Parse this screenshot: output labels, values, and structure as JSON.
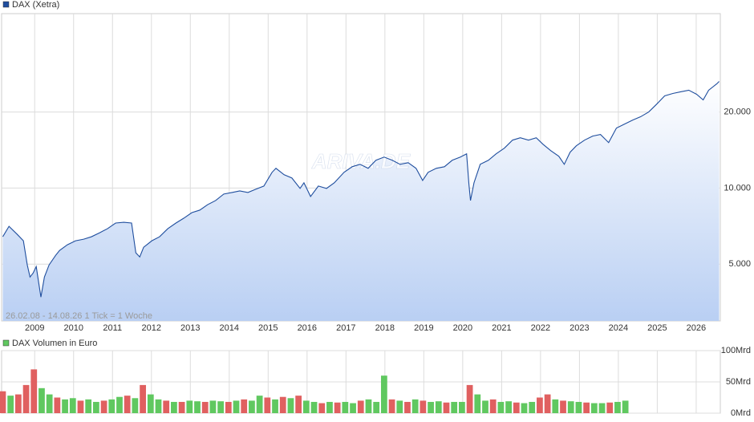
{
  "chart_data": [
    {
      "type": "line",
      "title": "DAX (Xetra)",
      "annotation": "26.02.08 - 14.08.26   1 Tick = 1 Woche",
      "watermark": "ARIVA.DE",
      "color": "#1f4e9e",
      "log_scale": true,
      "grid": true,
      "x": [
        2008.18,
        2008.34,
        2008.55,
        2008.71,
        2008.81,
        2008.88,
        2008.96,
        2009.04,
        2009.16,
        2009.25,
        2009.37,
        2009.54,
        2009.64,
        2009.84,
        2010.05,
        2010.26,
        2010.46,
        2010.67,
        2010.87,
        2011.08,
        2011.29,
        2011.49,
        2011.6,
        2011.7,
        2011.8,
        2012.01,
        2012.21,
        2012.42,
        2012.63,
        2012.83,
        2013.04,
        2013.24,
        2013.45,
        2013.65,
        2013.86,
        2014.07,
        2014.27,
        2014.48,
        2014.68,
        2014.89,
        2015.1,
        2015.2,
        2015.41,
        2015.61,
        2015.82,
        2015.92,
        2016.09,
        2016.29,
        2016.5,
        2016.7,
        2016.95,
        2017.16,
        2017.36,
        2017.57,
        2017.77,
        2017.98,
        2018.19,
        2018.39,
        2018.6,
        2018.8,
        2018.97,
        2019.11,
        2019.32,
        2019.53,
        2019.73,
        2019.94,
        2020.1,
        2020.16,
        2020.2,
        2020.29,
        2020.45,
        2020.66,
        2020.86,
        2021.07,
        2021.28,
        2021.48,
        2021.69,
        2021.89,
        2022.06,
        2022.26,
        2022.47,
        2022.61,
        2022.76,
        2022.92,
        2023.13,
        2023.34,
        2023.54,
        2023.75,
        2023.95,
        2024.16,
        2024.37,
        2024.57,
        2024.78,
        2024.99,
        2025.19,
        2025.4,
        2025.6,
        2025.81,
        2026.01,
        2026.18,
        2026.32,
        2026.53,
        2026.59
      ],
      "values": [
        6418,
        7056,
        6560,
        6184,
        4963,
        4445,
        4610,
        4890,
        3704,
        4445,
        4963,
        5420,
        5665,
        5964,
        6184,
        6276,
        6418,
        6655,
        6905,
        7270,
        7320,
        7270,
        5540,
        5340,
        5830,
        6184,
        6418,
        6905,
        7270,
        7595,
        7995,
        8175,
        8605,
        8925,
        9470,
        9605,
        9745,
        9605,
        9890,
        10185,
        11540,
        11970,
        11290,
        10960,
        9965,
        10490,
        9260,
        10185,
        9965,
        10490,
        11540,
        12145,
        12415,
        11970,
        12880,
        13260,
        12880,
        12415,
        12600,
        11970,
        10720,
        11540,
        11970,
        12145,
        12880,
        13260,
        13660,
        10340,
        8925,
        10490,
        12415,
        12880,
        13660,
        14380,
        15475,
        15815,
        15475,
        15815,
        14920,
        14065,
        13360,
        12415,
        13860,
        14700,
        15475,
        16055,
        16295,
        15135,
        17270,
        17915,
        18585,
        19145,
        20000,
        21520,
        23170,
        23680,
        24030,
        24390,
        23510,
        22330,
        24390,
        25850,
        26430
      ],
      "xlim": [
        2008.15,
        2026.62
      ],
      "xticks": [
        2009,
        2010,
        2011,
        2012,
        2013,
        2014,
        2015,
        2016,
        2017,
        2018,
        2019,
        2020,
        2021,
        2022,
        2023,
        2024,
        2025,
        2026
      ],
      "ylim": [
        2980,
        49000
      ],
      "yticks": [
        {
          "value": 5000,
          "label": "5.000"
        },
        {
          "value": 10000,
          "label": "10.000"
        },
        {
          "value": 20000,
          "label": "20.000"
        }
      ]
    },
    {
      "type": "bar",
      "title": "DAX Volumen in Euro",
      "grid": true,
      "x": [
        2008.18,
        2008.38,
        2008.58,
        2008.78,
        2008.98,
        2009.18,
        2009.38,
        2009.58,
        2009.78,
        2009.98,
        2010.18,
        2010.38,
        2010.58,
        2010.78,
        2010.98,
        2011.18,
        2011.38,
        2011.58,
        2011.78,
        2011.98,
        2012.18,
        2012.38,
        2012.58,
        2012.78,
        2012.98,
        2013.18,
        2013.38,
        2013.58,
        2013.78,
        2013.98,
        2014.18,
        2014.38,
        2014.58,
        2014.78,
        2014.98,
        2015.18,
        2015.38,
        2015.58,
        2015.78,
        2015.98,
        2016.18,
        2016.38,
        2016.58,
        2016.78,
        2016.98,
        2017.18,
        2017.38,
        2017.58,
        2017.78,
        2017.98,
        2018.18,
        2018.38,
        2018.58,
        2018.78,
        2018.98,
        2019.18,
        2019.38,
        2019.58,
        2019.78,
        2019.98,
        2020.18,
        2020.38,
        2020.58,
        2020.78,
        2020.98,
        2021.18,
        2021.38,
        2021.58,
        2021.78,
        2021.98,
        2022.18,
        2022.38,
        2022.58,
        2022.78,
        2022.98,
        2023.18,
        2023.38,
        2023.58,
        2023.78,
        2023.98,
        2024.18
      ],
      "values": [
        35,
        28,
        30,
        45,
        70,
        40,
        30,
        25,
        22,
        24,
        20,
        22,
        18,
        20,
        22,
        26,
        28,
        24,
        45,
        30,
        22,
        20,
        18,
        18,
        20,
        19,
        18,
        20,
        19,
        18,
        20,
        22,
        20,
        28,
        25,
        22,
        26,
        24,
        28,
        20,
        18,
        16,
        18,
        17,
        18,
        16,
        20,
        22,
        18,
        60,
        22,
        20,
        18,
        22,
        20,
        18,
        19,
        17,
        18,
        18,
        45,
        30,
        20,
        22,
        18,
        19,
        17,
        16,
        18,
        25,
        30,
        22,
        20,
        19,
        18,
        17,
        16,
        16,
        17,
        18,
        20
      ],
      "colors": [
        "#e06060",
        "#60c860",
        "#e06060",
        "#e06060",
        "#e06060",
        "#60c860",
        "#60c860",
        "#e06060",
        "#60c860",
        "#60c860",
        "#e06060",
        "#60c860",
        "#60c860",
        "#e06060",
        "#60c860",
        "#60c860",
        "#e06060",
        "#60c860",
        "#e06060",
        "#60c860",
        "#60c860",
        "#e06060",
        "#60c860",
        "#e06060",
        "#60c860",
        "#60c860",
        "#e06060",
        "#60c860",
        "#60c860",
        "#e06060",
        "#60c860",
        "#e06060",
        "#60c860",
        "#60c860",
        "#e06060",
        "#60c860",
        "#e06060",
        "#60c860",
        "#e06060",
        "#60c860",
        "#60c860",
        "#e06060",
        "#60c860",
        "#e06060",
        "#60c860",
        "#60c860",
        "#e06060",
        "#60c860",
        "#60c860",
        "#60c860",
        "#e06060",
        "#60c860",
        "#e06060",
        "#60c860",
        "#e06060",
        "#60c860",
        "#60c860",
        "#e06060",
        "#60c860",
        "#60c860",
        "#e06060",
        "#60c860",
        "#60c860",
        "#e06060",
        "#60c860",
        "#60c860",
        "#e06060",
        "#60c860",
        "#60c860",
        "#e06060",
        "#e06060",
        "#60c860",
        "#e06060",
        "#60c860",
        "#60c860",
        "#e06060",
        "#60c860",
        "#60c860",
        "#e06060",
        "#60c860",
        "#60c860"
      ],
      "legend_color": "#60c860",
      "xlim": [
        2008.15,
        2026.62
      ],
      "xticks": [
        2009,
        2010,
        2011,
        2012,
        2013,
        2014,
        2015,
        2016,
        2017,
        2018,
        2019,
        2020,
        2021,
        2022,
        2023,
        2024,
        2025,
        2026
      ],
      "ylim": [
        0,
        100
      ],
      "yticks": [
        {
          "value": 0,
          "label": "0Mrd"
        },
        {
          "value": 50,
          "label": "50Mrd"
        },
        {
          "value": 100,
          "label": "100Mrd"
        }
      ]
    }
  ]
}
